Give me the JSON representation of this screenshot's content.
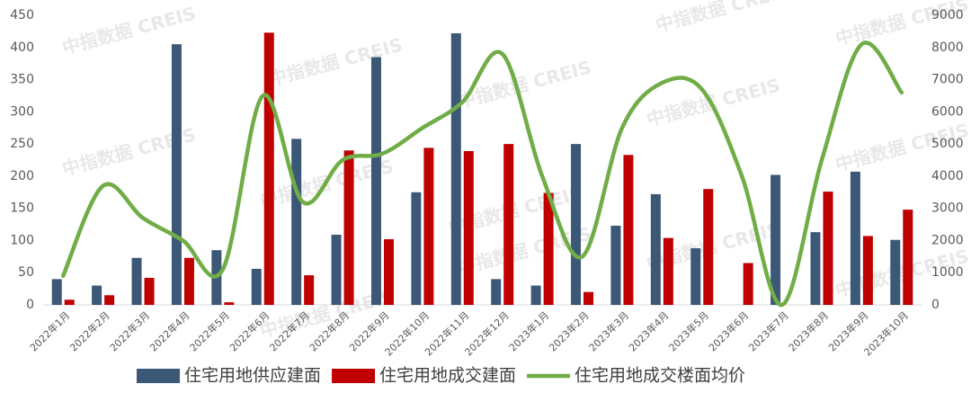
{
  "chart_data": {
    "type": "bar-line",
    "watermark": "中指数据 CREIS",
    "categories": [
      "2022年1月",
      "2022年2月",
      "2022年3月",
      "2022年4月",
      "2022年5月",
      "2022年6月",
      "2022年7月",
      "2022年8月",
      "2022年9月",
      "2022年10月",
      "2022年11月",
      "2022年12月",
      "2023年1月",
      "2023年2月",
      "2023年3月",
      "2023年4月",
      "2023年5月",
      "2023年6月",
      "2023年7月",
      "2023年8月",
      "2023年9月",
      "2023年10月"
    ],
    "series": [
      {
        "name": "住宅用地供应建面",
        "type": "bar",
        "color": "#3b5877",
        "values": [
          40,
          30,
          73,
          405,
          85,
          56,
          258,
          109,
          385,
          175,
          422,
          40,
          30,
          250,
          123,
          172,
          88,
          0,
          202,
          113,
          207,
          101
        ]
      },
      {
        "name": "住宅用地成交建面",
        "type": "bar",
        "color": "#c00000",
        "values": [
          8,
          15,
          42,
          73,
          4,
          423,
          46,
          240,
          102,
          244,
          239,
          250,
          174,
          20,
          233,
          104,
          180,
          65,
          0,
          176,
          107,
          148
        ]
      },
      {
        "name": "住宅用地成交楼面均价",
        "type": "line",
        "axis": "y2",
        "color": "#70ad47",
        "values": [
          900,
          3700,
          2700,
          2000,
          1100,
          6500,
          3200,
          4500,
          4700,
          5500,
          6300,
          7800,
          4000,
          1500,
          5500,
          6900,
          6700,
          4000,
          0,
          4500,
          8100,
          6600
        ]
      }
    ],
    "ylim": [
      0,
      450
    ],
    "yticks": [
      0,
      50,
      100,
      150,
      200,
      250,
      300,
      350,
      400,
      450
    ],
    "y2lim": [
      0,
      9000
    ],
    "y2ticks": [
      0,
      1000,
      2000,
      3000,
      4000,
      5000,
      6000,
      7000,
      8000,
      9000
    ],
    "legend": "bottom"
  }
}
